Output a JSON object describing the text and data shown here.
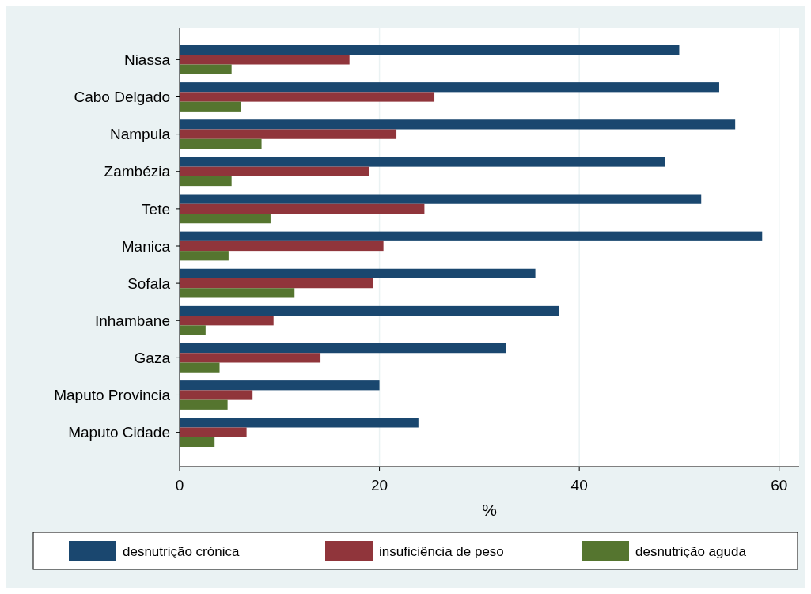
{
  "chart_data": {
    "type": "bar",
    "orientation": "horizontal",
    "xlabel": "%",
    "categories": [
      "Niassa",
      "Cabo Delgado",
      "Nampula",
      "Zambézia",
      "Tete",
      "Manica",
      "Sofala",
      "Inhambane",
      "Gaza",
      "Maputo Provincia",
      "Maputo Cidade"
    ],
    "series": [
      {
        "name": "desnutrição crónica",
        "color": "#1a476f",
        "values": [
          50.0,
          54.0,
          55.6,
          48.6,
          52.2,
          58.3,
          35.6,
          38.0,
          32.7,
          20.0,
          23.9
        ]
      },
      {
        "name": "insuficiência de peso",
        "color": "#90353b",
        "values": [
          17.0,
          25.5,
          21.7,
          19.0,
          24.5,
          20.4,
          19.4,
          9.4,
          14.1,
          7.3,
          6.7
        ]
      },
      {
        "name": "desnutrição aguda",
        "color": "#55752f",
        "values": [
          5.2,
          6.1,
          8.2,
          5.2,
          9.1,
          4.9,
          11.5,
          2.6,
          4.0,
          4.8,
          3.5
        ]
      }
    ],
    "xlim": [
      0,
      62
    ],
    "xticks": [
      0,
      20,
      40,
      60
    ],
    "grid": "x",
    "legend": "bottom"
  }
}
